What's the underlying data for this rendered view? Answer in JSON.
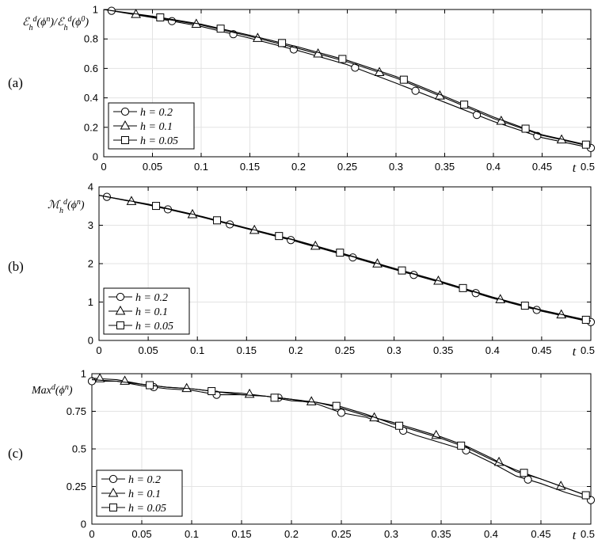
{
  "chart_data": [
    {
      "type": "line",
      "panel_label": "(a)",
      "ylabel": "ℰ_h^d(ϕ^n)/ℰ_h^d(ϕ^0)",
      "x_end_label": "t",
      "xlim": [
        0,
        0.5
      ],
      "ylim": [
        0,
        1
      ],
      "xticks": [
        "0",
        "0.05",
        "0.1",
        "0.15",
        "0.2",
        "0.25",
        "0.3",
        "0.35",
        "0.4",
        "0.45",
        "0.5"
      ],
      "yticks": [
        "0",
        "0.2",
        "0.4",
        "0.6",
        "0.8",
        "1"
      ],
      "grid": true,
      "legend_position": "bottom-left",
      "series": [
        {
          "name": "h = 0.2",
          "marker": "circle",
          "marker_x": [
            0.008,
            0.07,
            0.133,
            0.195,
            0.258,
            0.32,
            0.383,
            0.445,
            0.5
          ],
          "x": [
            0,
            0.05,
            0.1,
            0.15,
            0.2,
            0.25,
            0.3,
            0.35,
            0.4,
            0.45,
            0.5
          ],
          "y": [
            1.0,
            0.945,
            0.885,
            0.805,
            0.72,
            0.625,
            0.5,
            0.37,
            0.24,
            0.13,
            0.06
          ]
        },
        {
          "name": "h = 0.1",
          "marker": "triangle",
          "marker_x": [
            0.033,
            0.095,
            0.158,
            0.22,
            0.283,
            0.345,
            0.408,
            0.47
          ],
          "x": [
            0,
            0.05,
            0.1,
            0.15,
            0.2,
            0.25,
            0.3,
            0.35,
            0.4,
            0.45,
            0.5
          ],
          "y": [
            1.0,
            0.95,
            0.895,
            0.818,
            0.735,
            0.645,
            0.535,
            0.4,
            0.26,
            0.145,
            0.07
          ]
        },
        {
          "name": "h = 0.05",
          "marker": "square",
          "marker_x": [
            0.058,
            0.12,
            0.183,
            0.245,
            0.308,
            0.37,
            0.433,
            0.495
          ],
          "x": [
            0,
            0.05,
            0.1,
            0.15,
            0.2,
            0.25,
            0.3,
            0.35,
            0.4,
            0.45,
            0.5
          ],
          "y": [
            1.0,
            0.955,
            0.9,
            0.825,
            0.745,
            0.655,
            0.545,
            0.41,
            0.27,
            0.15,
            0.075
          ]
        }
      ],
      "legend": [
        "h = 0.2",
        "h = 0.1",
        "h = 0.05"
      ]
    },
    {
      "type": "line",
      "panel_label": "(b)",
      "ylabel": "ℳ_h^d(ϕ^n)",
      "x_end_label": "t",
      "xlim": [
        0,
        0.5
      ],
      "ylim": [
        0,
        4
      ],
      "xticks": [
        "0",
        "0.05",
        "0.1",
        "0.15",
        "0.2",
        "0.25",
        "0.3",
        "0.35",
        "0.4",
        "0.45",
        "0.5"
      ],
      "yticks": [
        "0",
        "1",
        "2",
        "3",
        "4"
      ],
      "grid": true,
      "legend_position": "bottom-left",
      "series": [
        {
          "name": "h = 0.2",
          "marker": "circle",
          "marker_x": [
            0.008,
            0.07,
            0.133,
            0.195,
            0.258,
            0.32,
            0.383,
            0.445,
            0.5
          ],
          "x": [
            0,
            0.05,
            0.1,
            0.15,
            0.2,
            0.25,
            0.3,
            0.35,
            0.4,
            0.45,
            0.5
          ],
          "y": [
            3.78,
            3.53,
            3.24,
            2.91,
            2.58,
            2.22,
            1.85,
            1.49,
            1.1,
            0.76,
            0.48
          ]
        },
        {
          "name": "h = 0.1",
          "marker": "triangle",
          "marker_x": [
            0.033,
            0.095,
            0.158,
            0.22,
            0.283,
            0.345,
            0.408,
            0.47
          ],
          "x": [
            0,
            0.05,
            0.1,
            0.15,
            0.2,
            0.25,
            0.3,
            0.35,
            0.4,
            0.45,
            0.5
          ],
          "y": [
            3.78,
            3.54,
            3.25,
            2.92,
            2.6,
            2.24,
            1.87,
            1.51,
            1.12,
            0.78,
            0.5
          ]
        },
        {
          "name": "h = 0.05",
          "marker": "square",
          "marker_x": [
            0.058,
            0.12,
            0.183,
            0.245,
            0.308,
            0.37,
            0.433,
            0.495
          ],
          "x": [
            0,
            0.05,
            0.1,
            0.15,
            0.2,
            0.25,
            0.3,
            0.35,
            0.4,
            0.45,
            0.5
          ],
          "y": [
            3.78,
            3.55,
            3.26,
            2.93,
            2.61,
            2.25,
            1.88,
            1.52,
            1.13,
            0.79,
            0.51
          ]
        }
      ],
      "legend": [
        "h = 0.2",
        "h = 0.1",
        "h = 0.05"
      ]
    },
    {
      "type": "line",
      "panel_label": "(c)",
      "ylabel": "Max^d(ϕ^n)",
      "x_end_label": "t",
      "xlim": [
        0,
        0.5
      ],
      "ylim": [
        0,
        1
      ],
      "xticks": [
        "0",
        "0.05",
        "0.1",
        "0.15",
        "0.2",
        "0.25",
        "0.3",
        "0.35",
        "0.4",
        "0.45",
        "0.5"
      ],
      "yticks": [
        "0",
        "0.25",
        "0.5",
        "0.75",
        "1"
      ],
      "grid": true,
      "legend_position": "bottom-left",
      "series": [
        {
          "name": "h = 0.2",
          "marker": "circle",
          "marker_x": [
            0,
            0.062,
            0.125,
            0.187,
            0.25,
            0.312,
            0.375,
            0.437,
            0.5
          ],
          "x": [
            0,
            0.025,
            0.05,
            0.075,
            0.1,
            0.125,
            0.15,
            0.175,
            0.2,
            0.225,
            0.25,
            0.275,
            0.3,
            0.325,
            0.35,
            0.375,
            0.4,
            0.425,
            0.45,
            0.475,
            0.5
          ],
          "y": [
            0.95,
            0.95,
            0.92,
            0.9,
            0.89,
            0.86,
            0.86,
            0.85,
            0.83,
            0.8,
            0.74,
            0.71,
            0.65,
            0.59,
            0.54,
            0.49,
            0.41,
            0.32,
            0.27,
            0.21,
            0.16
          ]
        },
        {
          "name": "h = 0.1",
          "marker": "triangle",
          "marker_x": [
            0.008,
            0.033,
            0.095,
            0.158,
            0.22,
            0.283,
            0.345,
            0.408,
            0.47
          ],
          "x": [
            0,
            0.025,
            0.05,
            0.075,
            0.1,
            0.125,
            0.15,
            0.175,
            0.2,
            0.225,
            0.25,
            0.275,
            0.3,
            0.325,
            0.35,
            0.375,
            0.4,
            0.425,
            0.45,
            0.475,
            0.5
          ],
          "y": [
            0.97,
            0.96,
            0.93,
            0.91,
            0.9,
            0.88,
            0.87,
            0.85,
            0.83,
            0.81,
            0.77,
            0.72,
            0.68,
            0.63,
            0.58,
            0.52,
            0.44,
            0.35,
            0.3,
            0.24,
            0.18
          ]
        },
        {
          "name": "h = 0.05",
          "marker": "square",
          "marker_x": [
            0.058,
            0.12,
            0.183,
            0.245,
            0.308,
            0.37,
            0.433,
            0.495
          ],
          "x": [
            0,
            0.025,
            0.05,
            0.075,
            0.1,
            0.125,
            0.15,
            0.175,
            0.2,
            0.225,
            0.25,
            0.275,
            0.3,
            0.325,
            0.35,
            0.375,
            0.4,
            0.425,
            0.45,
            0.475,
            0.5
          ],
          "y": [
            0.96,
            0.95,
            0.93,
            0.91,
            0.9,
            0.88,
            0.86,
            0.85,
            0.82,
            0.81,
            0.78,
            0.73,
            0.67,
            0.62,
            0.57,
            0.51,
            0.43,
            0.36,
            0.3,
            0.24,
            0.18
          ]
        }
      ],
      "legend": [
        "h = 0.2",
        "h = 0.1",
        "h = 0.05"
      ]
    }
  ]
}
